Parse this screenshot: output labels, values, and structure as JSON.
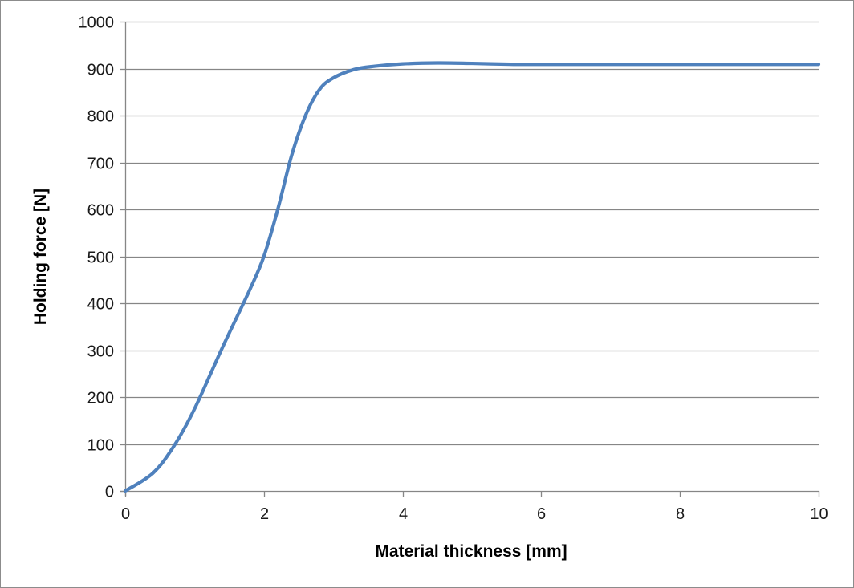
{
  "chart_data": {
    "type": "line",
    "xlabel": "Material thickness  [mm]",
    "ylabel": "Holding force [N]",
    "xlim": [
      0,
      10
    ],
    "ylim": [
      0,
      1000
    ],
    "x_ticks": [
      0,
      2,
      4,
      6,
      8,
      10
    ],
    "y_ticks": [
      0,
      100,
      200,
      300,
      400,
      500,
      600,
      700,
      800,
      900,
      1000
    ],
    "grid": "horizontal",
    "legend": "none",
    "series": [
      {
        "color": "#4f81bd",
        "x": [
          0,
          0.4,
          0.7,
          1.0,
          1.4,
          1.8,
          2.0,
          2.2,
          2.4,
          2.6,
          2.8,
          3.0,
          3.3,
          3.6,
          4.0,
          4.5,
          5.0,
          5.6,
          6.0,
          7.0,
          8.0,
          9.0,
          10.0
        ],
        "y": [
          0,
          38,
          95,
          175,
          305,
          430,
          500,
          600,
          715,
          800,
          855,
          880,
          898,
          905,
          910,
          912,
          911,
          909,
          909,
          909,
          909,
          909,
          909
        ]
      }
    ]
  }
}
